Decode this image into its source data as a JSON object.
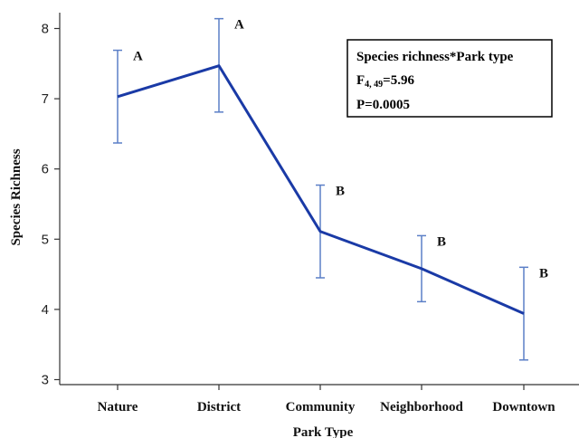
{
  "chart_data": {
    "type": "line",
    "xlabel": "Park Type",
    "ylabel": "Species Richness",
    "categories": [
      "Nature",
      "District",
      "Community",
      "Neighborhood",
      "Downtown"
    ],
    "series": [
      {
        "values": [
          7.03,
          7.47,
          5.11,
          4.58,
          3.94
        ],
        "error_low": [
          6.37,
          6.81,
          4.45,
          4.11,
          3.28
        ],
        "error_high": [
          7.69,
          8.14,
          5.77,
          5.05,
          4.6
        ],
        "group_letters": [
          "A",
          "A",
          "B",
          "B",
          "B"
        ]
      }
    ],
    "ylim": [
      2.85,
      8.2
    ],
    "yticks": [
      3,
      4,
      5,
      6,
      7,
      8
    ],
    "grid": false,
    "line_color": "#1a3aa6",
    "errorbar_color": "#5b7fc7",
    "annotation": {
      "title": "Species richness*Park type",
      "stat_prefix": "F",
      "stat_subscript": "4, 49",
      "stat_value": "=5.96",
      "p_text": "P=0.0005",
      "placement": "top-right"
    }
  }
}
